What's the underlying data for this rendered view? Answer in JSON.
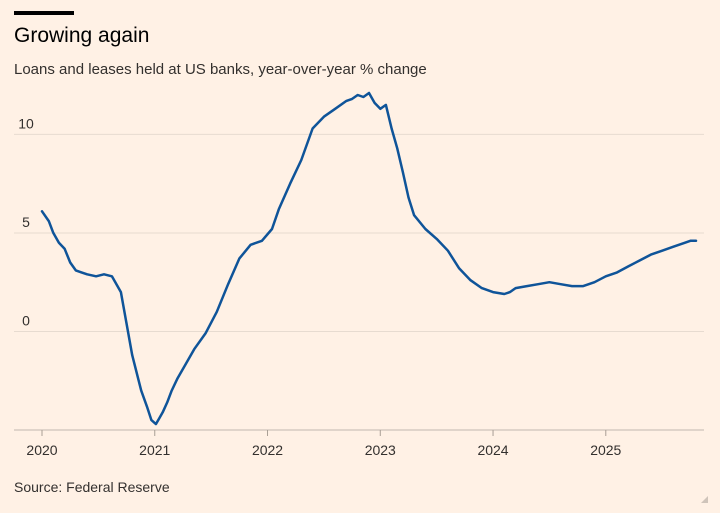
{
  "title": "Growing again",
  "subtitle": "Loans and leases held at US banks, year-over-year % change",
  "source": "Source: Federal Reserve",
  "colors": {
    "background": "#fff1e5",
    "line": "#0f5499",
    "grid": "#e7dbd0",
    "text": "#33302e"
  },
  "chart_data": {
    "type": "line",
    "title": "Growing again",
    "subtitle": "Loans and leases held at US banks, year-over-year % change",
    "ylim": [
      -5,
      12
    ],
    "xlim": [
      2020.0,
      2025.8
    ],
    "y_ticks": [
      0,
      5,
      10
    ],
    "x_ticks": [
      "2020",
      "2021",
      "2022",
      "2023",
      "2024",
      "2025"
    ],
    "grid": "horizontal",
    "series": [
      {
        "color": "#0f5499",
        "x": [
          2020.0,
          2020.06,
          2020.1,
          2020.15,
          2020.2,
          2020.25,
          2020.3,
          2020.35,
          2020.4,
          2020.48,
          2020.55,
          2020.62,
          2020.7,
          2020.8,
          2020.88,
          2020.93,
          2020.97,
          2021.01,
          2021.04,
          2021.07,
          2021.11,
          2021.15,
          2021.2,
          2021.27,
          2021.35,
          2021.45,
          2021.55,
          2021.65,
          2021.75,
          2021.85,
          2021.95,
          2022.04,
          2022.1,
          2022.2,
          2022.3,
          2022.4,
          2022.5,
          2022.6,
          2022.7,
          2022.75,
          2022.8,
          2022.85,
          2022.9,
          2022.95,
          2023.0,
          2023.05,
          2023.1,
          2023.15,
          2023.2,
          2023.25,
          2023.3,
          2023.4,
          2023.5,
          2023.6,
          2023.7,
          2023.8,
          2023.9,
          2024.0,
          2024.1,
          2024.15,
          2024.2,
          2024.3,
          2024.4,
          2024.5,
          2024.6,
          2024.7,
          2024.8,
          2024.9,
          2025.0,
          2025.1,
          2025.2,
          2025.3,
          2025.4,
          2025.5,
          2025.6,
          2025.7,
          2025.75,
          2025.8
        ],
        "y": [
          6.1,
          5.6,
          5.0,
          4.5,
          4.2,
          3.5,
          3.1,
          3.0,
          2.9,
          2.8,
          2.9,
          2.8,
          2.0,
          -1.2,
          -3.0,
          -3.8,
          -4.5,
          -4.7,
          -4.4,
          -4.1,
          -3.6,
          -3.0,
          -2.4,
          -1.7,
          -0.9,
          -0.1,
          1.0,
          2.4,
          3.7,
          4.4,
          4.6,
          5.2,
          6.2,
          7.5,
          8.7,
          10.3,
          10.9,
          11.3,
          11.7,
          11.8,
          12.0,
          11.9,
          12.1,
          11.6,
          11.3,
          11.5,
          10.3,
          9.3,
          8.1,
          6.8,
          5.9,
          5.2,
          4.7,
          4.1,
          3.2,
          2.6,
          2.2,
          2.0,
          1.9,
          2.0,
          2.2,
          2.3,
          2.4,
          2.5,
          2.4,
          2.3,
          2.3,
          2.5,
          2.8,
          3.0,
          3.3,
          3.6,
          3.9,
          4.1,
          4.3,
          4.5,
          4.6,
          4.6
        ]
      }
    ]
  }
}
